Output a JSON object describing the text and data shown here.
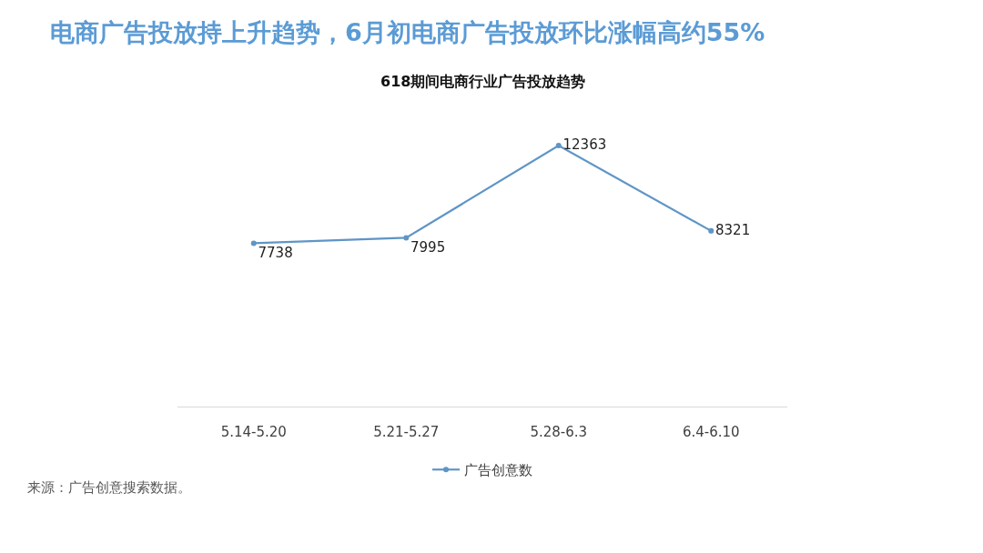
{
  "chart_data": {
    "type": "line",
    "title": "电商广告投放持上升趋势，6月初电商广告投放环比涨幅高约55%",
    "subtitle": "618期间电商行业广告投放趋势",
    "categories": [
      "5.14-5.20",
      "5.21-5.27",
      "5.28-6.3",
      "6.4-6.10"
    ],
    "series": [
      {
        "name": "广告创意数",
        "color": "#5f95c6",
        "values": [
          7738,
          7995,
          12363,
          8321
        ]
      }
    ],
    "data_labels": true,
    "marker": "circle",
    "line_style": "solid",
    "legend": "bottom",
    "annotations": [
      "来源：广告创意搜索数据。"
    ]
  }
}
